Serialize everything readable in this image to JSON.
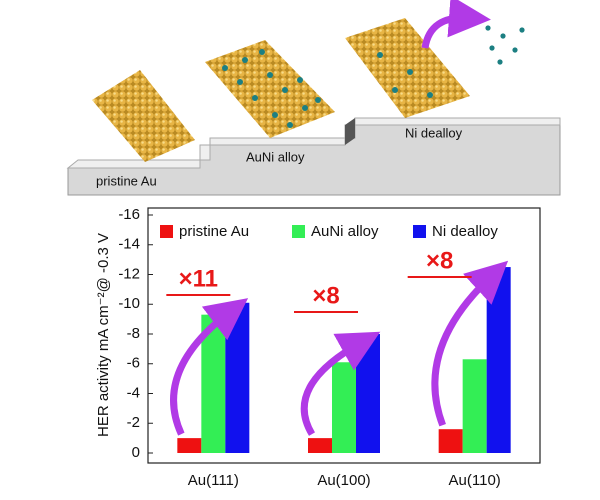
{
  "illustration": {
    "labels": [
      "pristine Au",
      "AuNi alloy",
      "Ni dealloy"
    ]
  },
  "chart_data": {
    "type": "bar",
    "y_label": "HER activity mA cm⁻²@ -0.3 V",
    "categories": [
      "Au(111)",
      "Au(100)",
      "Au(110)"
    ],
    "series": [
      {
        "name": "pristine Au",
        "color": "#ee1111",
        "values": [
          -1.0,
          -1.0,
          -1.6
        ]
      },
      {
        "name": "AuNi alloy",
        "color": "#33ee55",
        "values": [
          -9.3,
          -6.1,
          -6.3
        ]
      },
      {
        "name": "Ni dealloy",
        "color": "#1111ee",
        "values": [
          -10.1,
          -8.0,
          -12.5
        ]
      }
    ],
    "annotations": [
      "×11",
      "×8",
      "×8"
    ],
    "ylim": [
      0,
      -16
    ],
    "yticks": [
      0,
      -2,
      -4,
      -6,
      -8,
      -10,
      -12,
      -14,
      -16
    ],
    "legend": "top"
  }
}
